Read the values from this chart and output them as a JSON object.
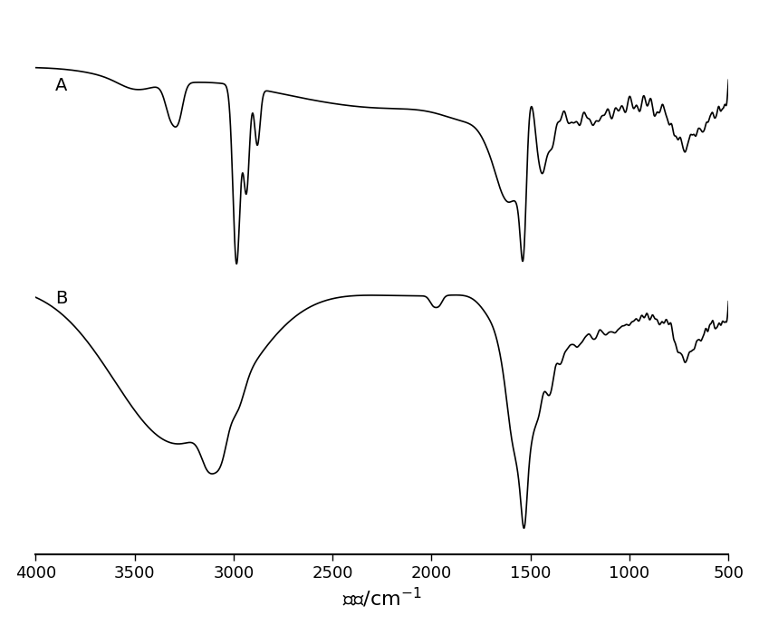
{
  "xlim_left": 4000,
  "xlim_right": 500,
  "xticks": [
    4000,
    3500,
    3000,
    2500,
    2000,
    1500,
    1000,
    500
  ],
  "background_color": "#ffffff",
  "line_color": "#000000",
  "label_A": "A",
  "label_B": "B",
  "xlabel_fontsize": 16,
  "tick_fontsize": 13,
  "label_fontsize": 14,
  "linewidth": 1.2
}
